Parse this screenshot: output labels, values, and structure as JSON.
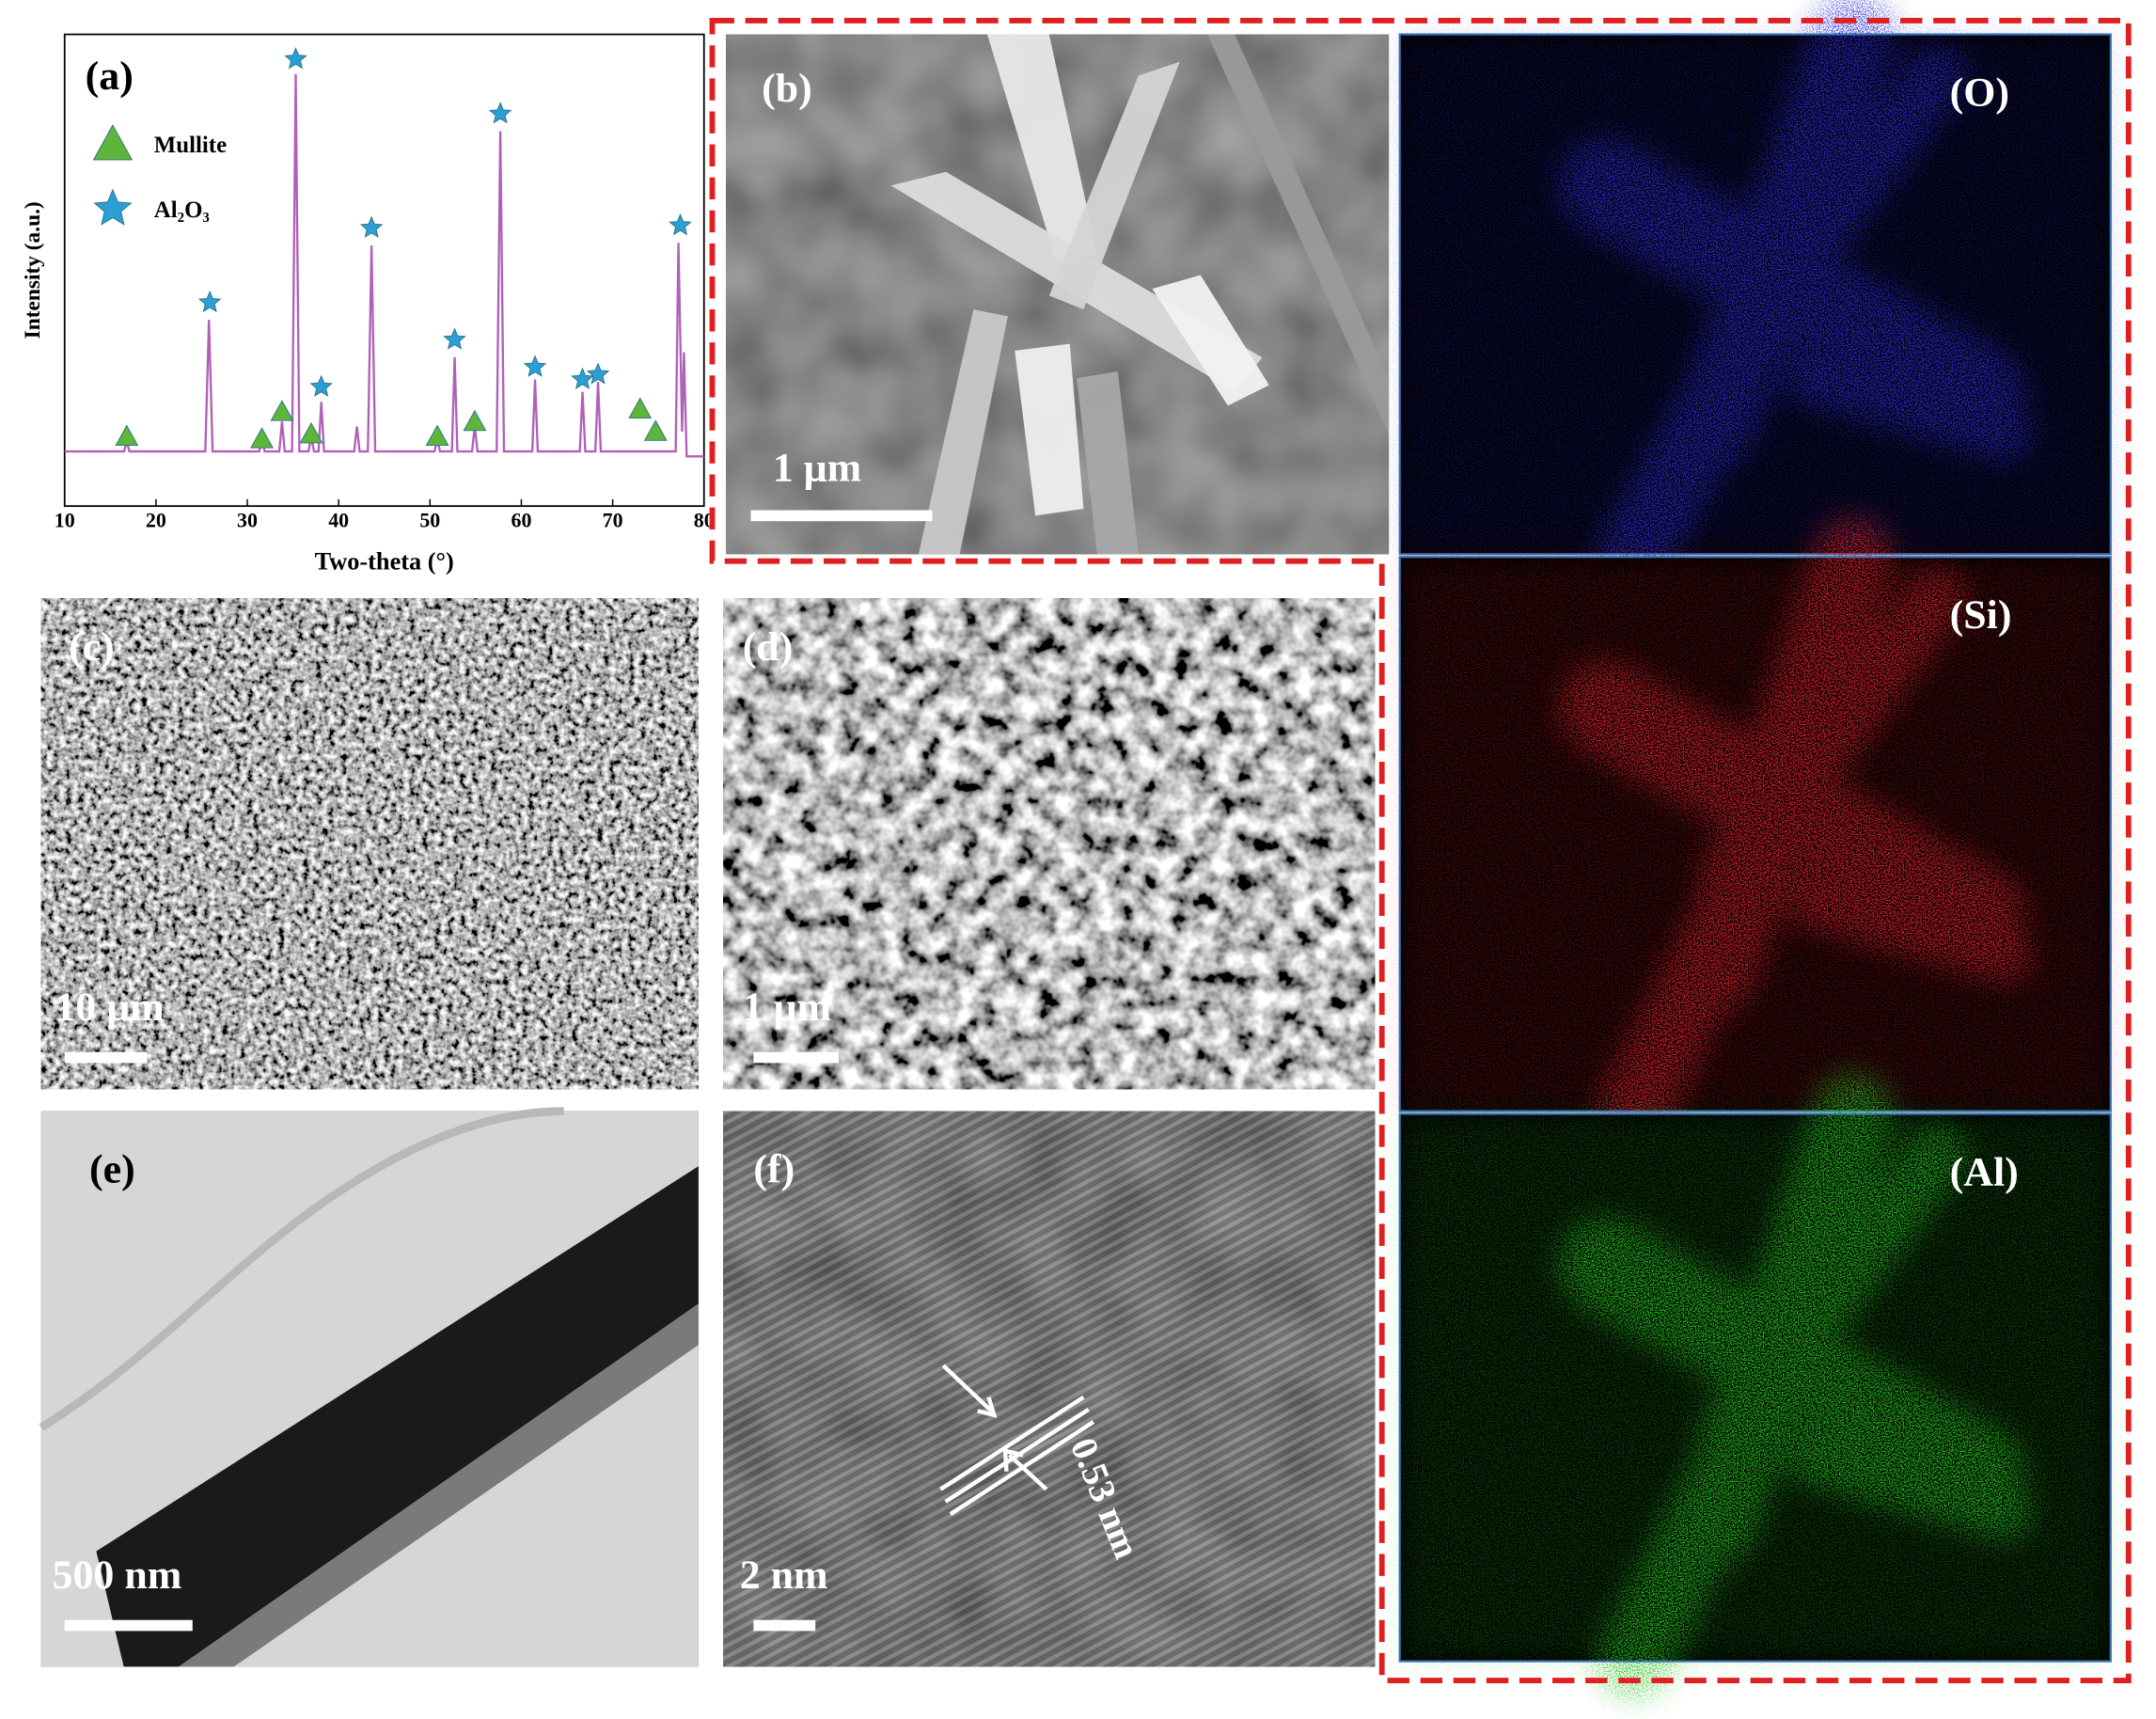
{
  "chart_data": {
    "type": "line",
    "label": "(a)",
    "xlabel": "Two-theta (°)",
    "ylabel": "Intensity (a.u.)",
    "x": [
      10,
      16.5,
      16.8,
      17.1,
      25.4,
      25.8,
      26.2,
      31.3,
      31.6,
      31.9,
      33.5,
      33.8,
      34.1,
      34.9,
      35.3,
      35.7,
      36.7,
      37.0,
      37.3,
      37.8,
      38.1,
      38.4,
      41.7,
      42.0,
      42.3,
      43.2,
      43.6,
      44.0,
      50.5,
      50.8,
      51.1,
      52.4,
      52.7,
      53.0,
      54.6,
      54.9,
      55.2,
      57.3,
      57.7,
      58.1,
      61.2,
      61.5,
      61.8,
      66.4,
      66.7,
      67.0,
      68.1,
      68.4,
      68.7,
      76.9,
      77.2,
      77.6,
      77.8,
      78.1,
      80
    ],
    "values": [
      16,
      16,
      18,
      16,
      16,
      42.5,
      16,
      16,
      18.5,
      16,
      16,
      22,
      16,
      16,
      92,
      16,
      16,
      19,
      16,
      16,
      26,
      16,
      16,
      21,
      16,
      16,
      57.5,
      16,
      16,
      18.5,
      16,
      16,
      35,
      16,
      16,
      21,
      16,
      16,
      80.5,
      16,
      16,
      30.5,
      16,
      16,
      28,
      16,
      16,
      30,
      16,
      16,
      58,
      20,
      36,
      15,
      15
    ],
    "color": "#b060b8",
    "markers": [
      {
        "name": "Mullite",
        "shape": "triangle",
        "color": "#5db53a",
        "x": [
          16.8,
          31.6,
          33.8,
          37.0,
          50.8,
          54.9,
          73.0,
          74.7
        ],
        "y": [
          19,
          18.5,
          24,
          19.5,
          19,
          22,
          24.5,
          20
        ]
      },
      {
        "name": "Al₂O₃",
        "shape": "star",
        "color": "#2b9fd3",
        "x": [
          25.9,
          35.3,
          38.1,
          43.6,
          52.7,
          57.7,
          61.5,
          66.7,
          68.4,
          77.4
        ],
        "y": [
          46,
          95,
          29,
          61,
          38.5,
          84,
          33,
          30.5,
          31.5,
          61.5
        ]
      }
    ],
    "xlim": [
      10,
      80
    ],
    "ylim": [
      5,
      100
    ],
    "xticks": [
      10,
      20,
      30,
      40,
      50,
      60,
      70,
      80
    ],
    "grid": false
  },
  "panels": {
    "b": {
      "label": "(b)",
      "scale_bar": "1 μm"
    },
    "o_map": {
      "label": "(O)"
    },
    "si_map": {
      "label": "(Si)"
    },
    "al_map": {
      "label": "(Al)"
    },
    "c": {
      "label": "(c)",
      "scale_bar": "10 μm"
    },
    "d": {
      "label": "(d)",
      "scale_bar": "1 μm"
    },
    "e": {
      "label": "(e)",
      "scale_bar": "500 nm"
    },
    "f": {
      "label": "(f)",
      "scale_bar": "2 nm",
      "annotation": "0.53 nm"
    }
  }
}
